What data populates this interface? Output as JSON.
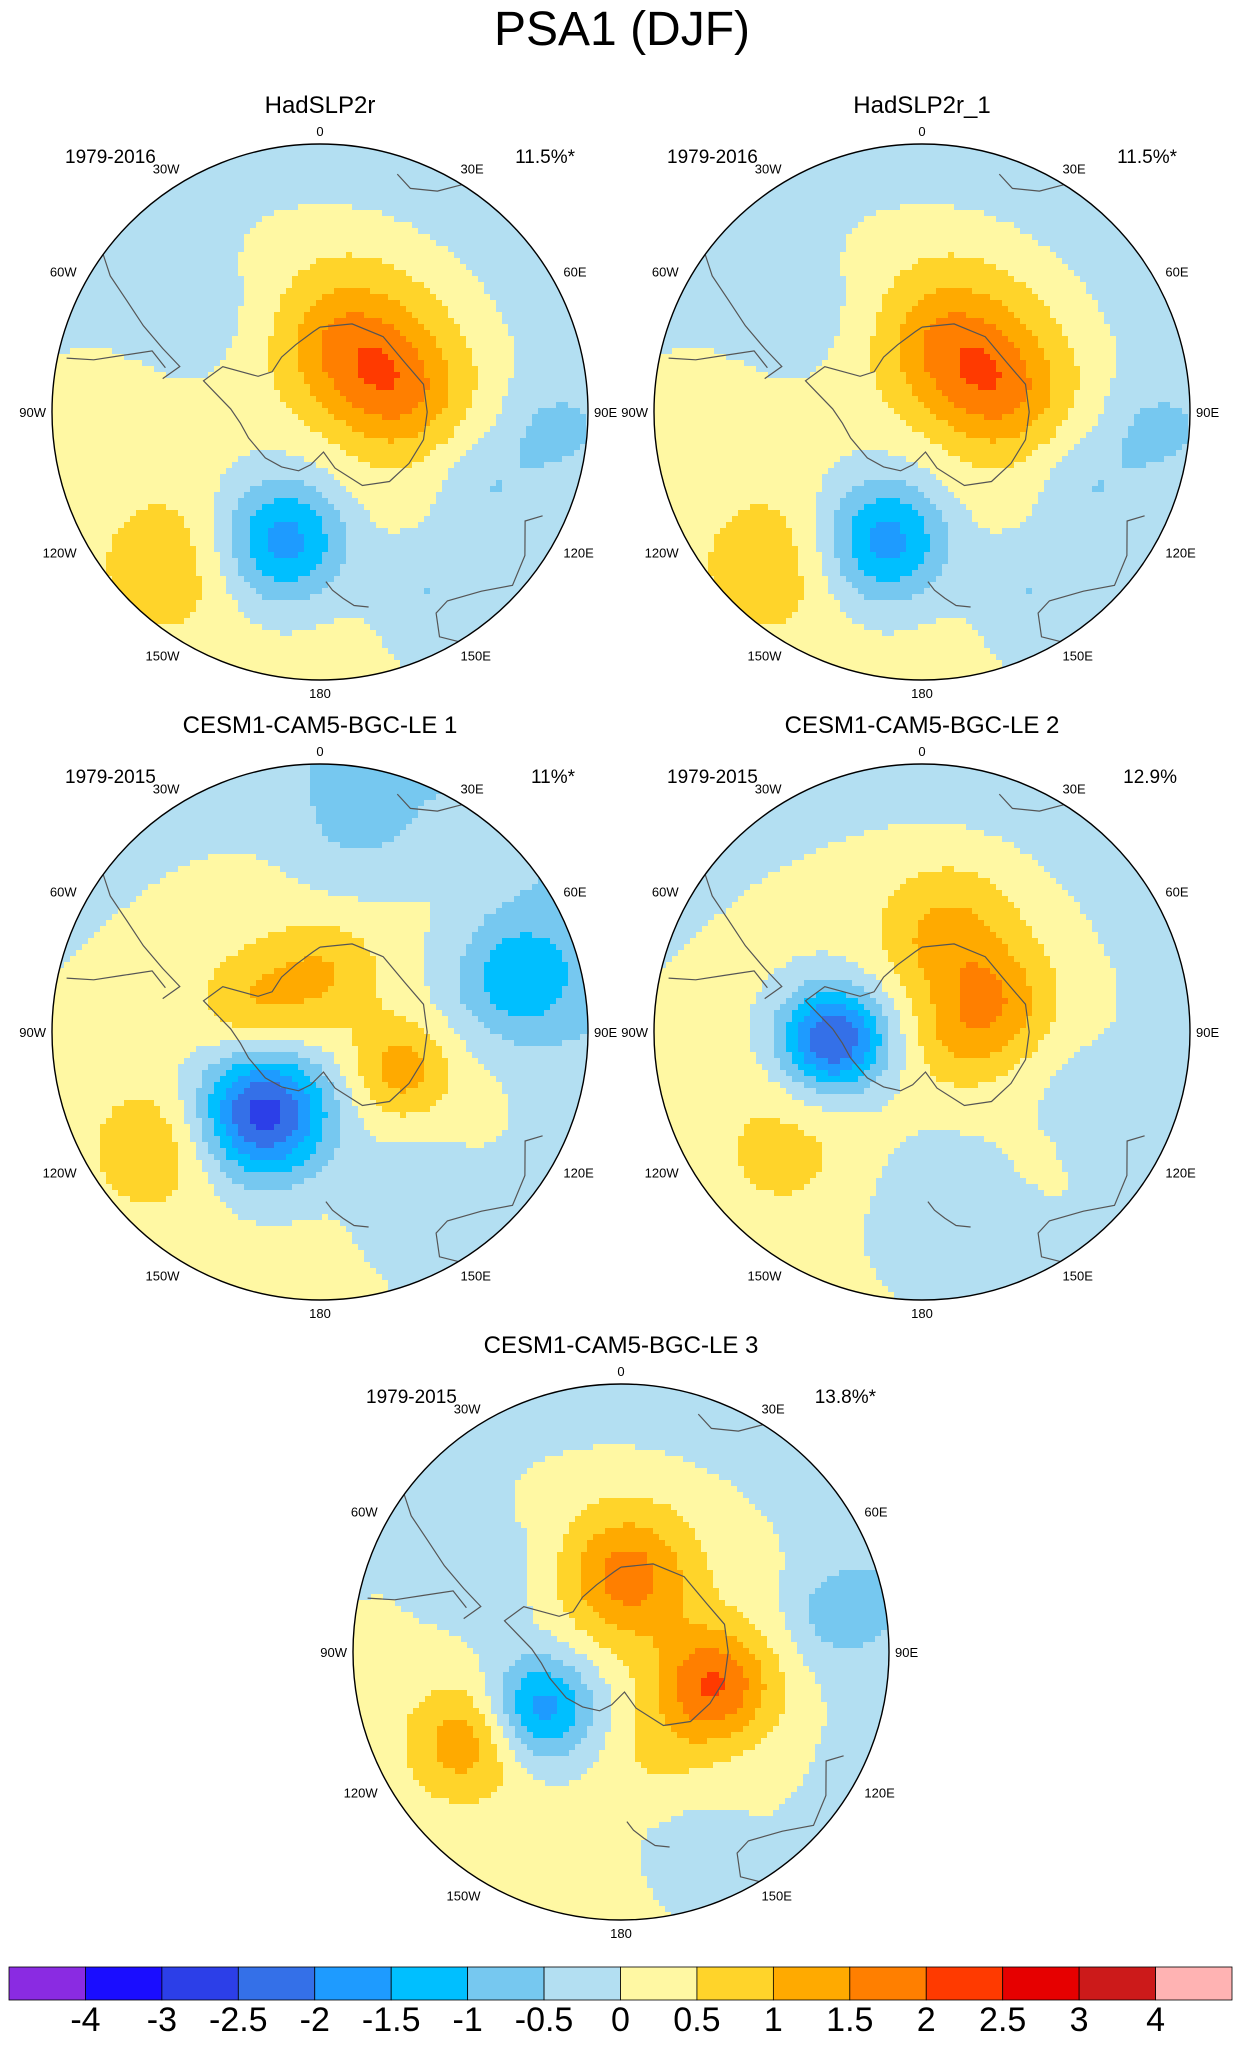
{
  "title": "PSA1 (DJF)",
  "panels": [
    {
      "name": "HadSLP2r",
      "period": "1979-2016",
      "variance": "11.5%*",
      "features": [
        {
          "lon": 195,
          "colat": 30,
          "v": -2.1,
          "r": 16
        },
        {
          "lon": 20,
          "colat": 17,
          "v": 1.35,
          "r": 18
        },
        {
          "lon": 75,
          "colat": 19,
          "v": 1.25,
          "r": 16
        },
        {
          "lon": 175,
          "colat": 32,
          "v": 0.3,
          "r": 26
        },
        {
          "lon": 225,
          "colat": 48,
          "v": 0.7,
          "r": 18
        },
        {
          "lon": 150,
          "colat": 45,
          "v": -0.7,
          "r": 14
        },
        {
          "lon": 115,
          "colat": 40,
          "v": -0.6,
          "r": 12
        },
        {
          "lon": 95,
          "colat": 50,
          "v": -0.5,
          "r": 12
        },
        {
          "lon": 310,
          "colat": 35,
          "v": -0.4,
          "r": 18
        }
      ]
    },
    {
      "name": "HadSLP2r_1",
      "period": "1979-2016",
      "variance": "11.5%*",
      "features": [
        {
          "lon": 195,
          "colat": 30,
          "v": -2.1,
          "r": 16
        },
        {
          "lon": 20,
          "colat": 17,
          "v": 1.35,
          "r": 18
        },
        {
          "lon": 75,
          "colat": 19,
          "v": 1.25,
          "r": 16
        },
        {
          "lon": 175,
          "colat": 32,
          "v": 0.3,
          "r": 26
        },
        {
          "lon": 225,
          "colat": 48,
          "v": 0.7,
          "r": 18
        },
        {
          "lon": 150,
          "colat": 45,
          "v": -0.7,
          "r": 14
        },
        {
          "lon": 115,
          "colat": 40,
          "v": -0.6,
          "r": 12
        },
        {
          "lon": 95,
          "colat": 50,
          "v": -0.5,
          "r": 12
        },
        {
          "lon": 310,
          "colat": 35,
          "v": -0.4,
          "r": 18
        }
      ]
    },
    {
      "name": "CESM1-CAM5-BGC-LE 1",
      "period": "1979-2015",
      "variance": "11%*",
      "features": [
        {
          "lon": 215,
          "colat": 22,
          "v": -2.9,
          "r": 16
        },
        {
          "lon": 290,
          "colat": 15,
          "v": 0.9,
          "r": 14
        },
        {
          "lon": 5,
          "colat": 14,
          "v": 0.8,
          "r": 14
        },
        {
          "lon": 115,
          "colat": 20,
          "v": 1.1,
          "r": 12
        },
        {
          "lon": 75,
          "colat": 45,
          "v": -1.4,
          "r": 16
        },
        {
          "lon": 10,
          "colat": 45,
          "v": -0.6,
          "r": 18
        },
        {
          "lon": 235,
          "colat": 45,
          "v": 0.8,
          "r": 16
        },
        {
          "lon": 150,
          "colat": 42,
          "v": -0.6,
          "r": 14
        }
      ]
    },
    {
      "name": "CESM1-CAM5-BGC-LE 2",
      "period": "1979-2015",
      "variance": "12.9%",
      "features": [
        {
          "lon": 265,
          "colat": 20,
          "v": -2.7,
          "r": 13
        },
        {
          "lon": 15,
          "colat": 22,
          "v": 1.05,
          "r": 16
        },
        {
          "lon": 70,
          "colat": 18,
          "v": 1.1,
          "r": 14
        },
        {
          "lon": 110,
          "colat": 8,
          "v": 0.6,
          "r": 12
        },
        {
          "lon": 230,
          "colat": 40,
          "v": 0.5,
          "r": 20
        },
        {
          "lon": 175,
          "colat": 40,
          "v": -0.6,
          "r": 18
        },
        {
          "lon": 110,
          "colat": 40,
          "v": -0.4,
          "r": 14
        }
      ]
    },
    {
      "name": "CESM1-CAM5-BGC-LE 3",
      "period": "1979-2015",
      "variance": "13.8%*",
      "features": [
        {
          "lon": 235,
          "colat": 22,
          "v": -1.9,
          "r": 13
        },
        {
          "lon": 5,
          "colat": 17,
          "v": 1.6,
          "r": 16
        },
        {
          "lon": 110,
          "colat": 22,
          "v": 1.9,
          "r": 14
        },
        {
          "lon": 240,
          "colat": 40,
          "v": 1.2,
          "r": 14
        },
        {
          "lon": 160,
          "colat": 25,
          "v": 0.4,
          "r": 12
        },
        {
          "lon": 80,
          "colat": 48,
          "v": -0.7,
          "r": 12
        },
        {
          "lon": 300,
          "colat": 35,
          "v": -0.5,
          "r": 16
        },
        {
          "lon": 160,
          "colat": 45,
          "v": -0.3,
          "r": 14
        }
      ]
    }
  ],
  "lon_labels": [
    "0",
    "30E",
    "60E",
    "90E",
    "120E",
    "150E",
    "180",
    "150W",
    "120W",
    "90W",
    "60W",
    "30W"
  ],
  "colorbar": {
    "levels": [
      "-4",
      "-3",
      "-2.5",
      "-2",
      "-1.5",
      "-1",
      "-0.5",
      "0",
      "0.5",
      "1",
      "1.5",
      "2",
      "2.5",
      "3",
      "4"
    ],
    "colors": [
      "#8a2be2",
      "#1a0dff",
      "#2c3fe8",
      "#3470e8",
      "#1e9bff",
      "#00bfff",
      "#76c8f0",
      "#b3dff2",
      "#fff8a3",
      "#ffd42a",
      "#ffaa00",
      "#ff7f00",
      "#ff3a00",
      "#e60000",
      "#cc1a1a",
      "#ffb3b3"
    ]
  }
}
